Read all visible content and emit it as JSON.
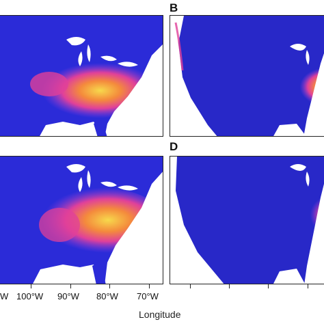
{
  "figure": {
    "panels": [
      {
        "letter": "",
        "region": "eastern-US",
        "hotspot": "high"
      },
      {
        "letter": "B",
        "region": "continental-US",
        "hotspot": "moderate"
      },
      {
        "letter": "",
        "region": "eastern-US",
        "hotspot": "high"
      },
      {
        "letter": "D",
        "region": "continental-US",
        "hotspot": "low"
      }
    ],
    "x_ticks": [
      "W",
      "100°W",
      "90°W",
      "80°W",
      "70°W"
    ],
    "xlabel": "Longitude",
    "colors": {
      "background_low": "#2b2bd8",
      "mid": "#8b3fe0",
      "high_magenta": "#e0409a",
      "high_orange": "#f48a3c",
      "peak_yellow": "#f7d94c",
      "land_ocean": "#ffffff"
    }
  }
}
